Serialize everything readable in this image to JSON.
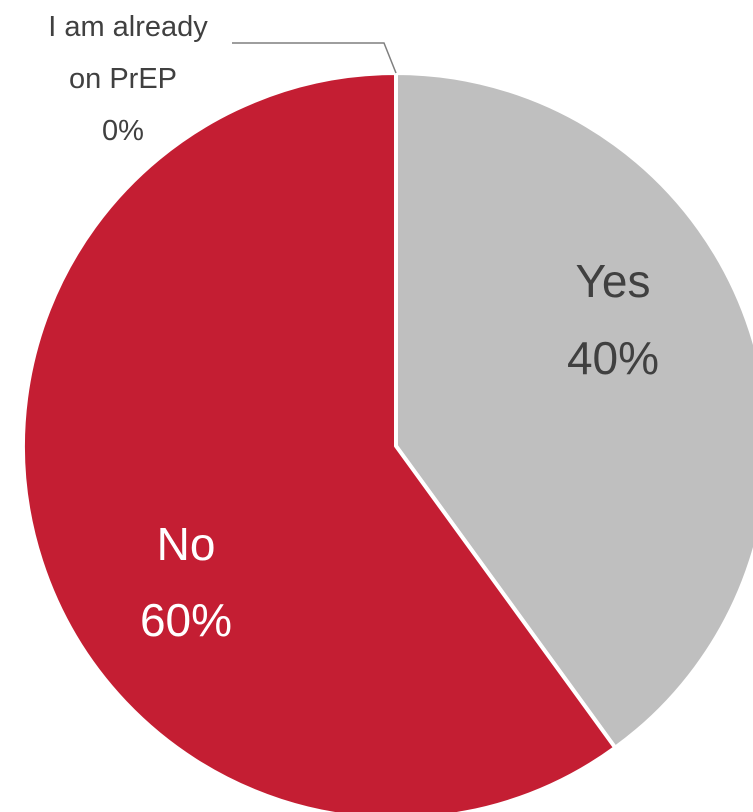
{
  "chart_data": {
    "type": "pie",
    "slices": [
      {
        "label": "I am already on PrEP",
        "label_lines": [
          "I am already",
          "on PrEP"
        ],
        "value": 0,
        "value_label": "0%",
        "color": "#8c8c8c"
      },
      {
        "label": "Yes",
        "label_lines": [
          "Yes"
        ],
        "value": 40,
        "value_label": "40%",
        "color": "#bfbfbf"
      },
      {
        "label": "No",
        "label_lines": [
          "No"
        ],
        "value": 60,
        "value_label": "60%",
        "color": "#c41e33"
      }
    ],
    "start_angle": "12 o'clock",
    "direction": "clockwise",
    "legend": "none"
  }
}
